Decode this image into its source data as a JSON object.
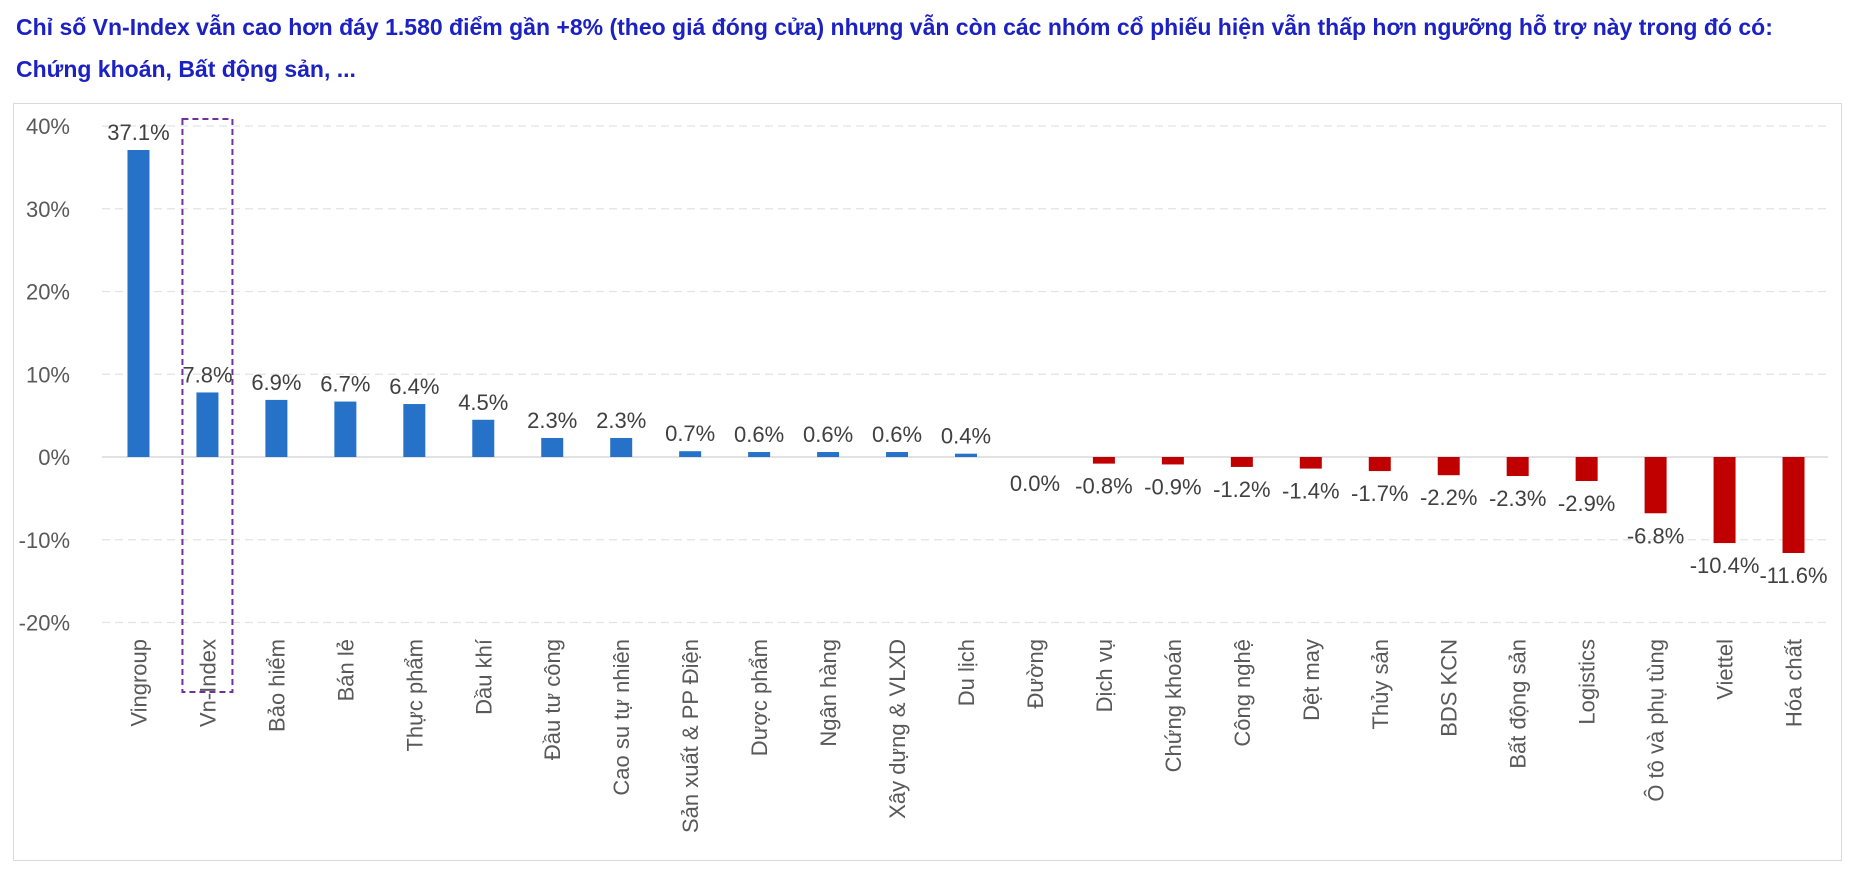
{
  "headline": "Chỉ số Vn-Index vẫn cao hơn đáy 1.580 điểm gần +8% (theo giá đóng cửa) nhưng vẫn còn các nhóm cổ phiếu hiện vẫn thấp hơn ngưỡng hỗ trợ này trong đó có: Chứng khoán, Bất động sản, ...",
  "chart_data": {
    "type": "bar",
    "categories": [
      "Vingroup",
      "Vn-Index",
      "Bảo hiểm",
      "Bán lẻ",
      "Thực phẩm",
      "Dầu khí",
      "Đầu tư công",
      "Cao su tự nhiên",
      "Sản xuất & PP Điện",
      "Dược phẩm",
      "Ngân hàng",
      "Xây dựng & VLXD",
      "Du lịch",
      "Đường",
      "Dịch vụ",
      "Chứng khoán",
      "Công nghệ",
      "Dệt may",
      "Thủy sản",
      "BDS KCN",
      "Bất động sản",
      "Logistics",
      "Ô tô và phụ tùng",
      "Viettel",
      "Hóa chất"
    ],
    "values": [
      37.1,
      7.8,
      6.9,
      6.7,
      6.4,
      4.5,
      2.3,
      2.3,
      0.7,
      0.6,
      0.6,
      0.6,
      0.4,
      0.0,
      -0.8,
      -0.9,
      -1.2,
      -1.4,
      -1.7,
      -2.2,
      -2.3,
      -2.9,
      -6.8,
      -10.4,
      -11.6
    ],
    "value_labels": [
      "37.1%",
      "7.8%",
      "6.9%",
      "6.7%",
      "6.4%",
      "4.5%",
      "2.3%",
      "2.3%",
      "0.7%",
      "0.6%",
      "0.6%",
      "0.6%",
      "0.4%",
      "0.0%",
      "-0.8%",
      "-0.9%",
      "-1.2%",
      "-1.4%",
      "-1.7%",
      "-2.2%",
      "-2.3%",
      "-2.9%",
      "-6.8%",
      "-10.4%",
      "-11.6%"
    ],
    "y_ticks": [
      40,
      30,
      20,
      10,
      0,
      -10,
      -20
    ],
    "y_tick_labels": [
      "40%",
      "30%",
      "20%",
      "10%",
      "0%",
      "-10%",
      "-20%"
    ],
    "ylim": [
      -20,
      40
    ],
    "highlighted_category": "Vn-Index",
    "grid": true,
    "colors": {
      "positive": "#2672c9",
      "negative": "#c00000",
      "highlight_box": "#7030a0",
      "headline": "#1c21c4"
    }
  }
}
